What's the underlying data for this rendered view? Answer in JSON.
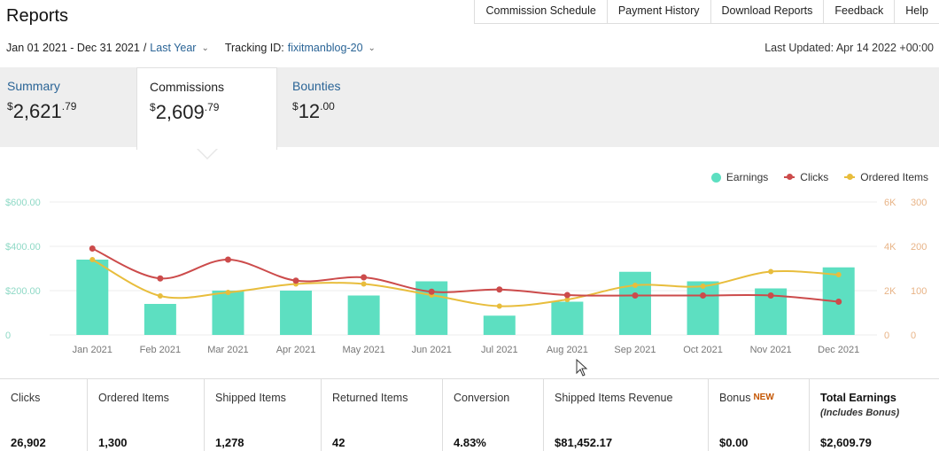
{
  "page": {
    "title": "Reports"
  },
  "topnav": [
    "Commission Schedule",
    "Payment History",
    "Download Reports",
    "Feedback",
    "Help"
  ],
  "filters": {
    "date_range": "Jan 01 2021 - Dec 31 2021",
    "separator": "/",
    "period": "Last Year",
    "tracking_label": "Tracking ID:",
    "tracking_id": "fixitmanblog-20",
    "last_updated": "Last Updated: Apr 14 2022 +00:00"
  },
  "summary_tabs": {
    "summary": {
      "label": "Summary",
      "currency": "$",
      "whole": "2,621",
      "cents": ".79"
    },
    "commissions": {
      "label": "Commissions",
      "currency": "$",
      "whole": "2,609",
      "cents": ".79"
    },
    "bounties": {
      "label": "Bounties",
      "currency": "$",
      "whole": "12",
      "cents": ".00"
    }
  },
  "legend": {
    "earnings": "Earnings",
    "clicks": "Clicks",
    "ordered": "Ordered Items"
  },
  "colors": {
    "earnings": "#5ddfc1",
    "clicks": "#cc4b4b",
    "ordered": "#e8bd3c",
    "earnings_axis": "#8fd9c6",
    "right_axis": "#e8b487",
    "link": "#2a6496",
    "new_badge": "#c45500"
  },
  "chart_data": {
    "type": "bar",
    "categories": [
      "Jan 2021",
      "Feb 2021",
      "Mar 2021",
      "Apr 2021",
      "May 2021",
      "Jun 2021",
      "Jul 2021",
      "Aug 2021",
      "Sep 2021",
      "Oct 2021",
      "Nov 2021",
      "Dec 2021"
    ],
    "series": [
      {
        "name": "Earnings",
        "type": "bar",
        "axis": "left",
        "values": [
          340,
          140,
          200,
          200,
          178,
          242,
          87,
          150,
          285,
          242,
          210,
          305
        ]
      },
      {
        "name": "Clicks",
        "type": "line",
        "axis": "right_outer",
        "values": [
          3900,
          2550,
          3400,
          2450,
          2600,
          1950,
          2050,
          1800,
          1780,
          1780,
          1780,
          1500
        ]
      },
      {
        "name": "Ordered Items",
        "type": "line",
        "axis": "right_inner",
        "values": [
          170,
          88,
          96,
          115,
          115,
          90,
          65,
          80,
          112,
          110,
          143,
          136
        ]
      }
    ],
    "left_axis": {
      "ticks": [
        "$600.00",
        "$400.00",
        "$200.00",
        "0"
      ],
      "range": [
        0,
        600
      ]
    },
    "right_outer_axis": {
      "ticks": [
        "6K",
        "4K",
        "2K",
        "0"
      ],
      "range": [
        0,
        6000
      ]
    },
    "right_inner_axis": {
      "ticks": [
        "300",
        "200",
        "100",
        "0"
      ],
      "range": [
        0,
        300
      ]
    },
    "legend_position": "top-right",
    "grid": true
  },
  "metrics": [
    {
      "label": "Clicks",
      "value": "26,902"
    },
    {
      "label": "Ordered Items",
      "value": "1,300"
    },
    {
      "label": "Shipped Items",
      "value": "1,278"
    },
    {
      "label": "Returned Items",
      "value": "42"
    },
    {
      "label": "Conversion",
      "value": "4.83%"
    },
    {
      "label": "Shipped Items Revenue",
      "value": "$81,452.17"
    },
    {
      "label": "Bonus",
      "badge": "NEW",
      "value": "$0.00"
    },
    {
      "label": "Total Earnings",
      "sub": "(Includes Bonus)",
      "value": "$2,609.79"
    }
  ]
}
